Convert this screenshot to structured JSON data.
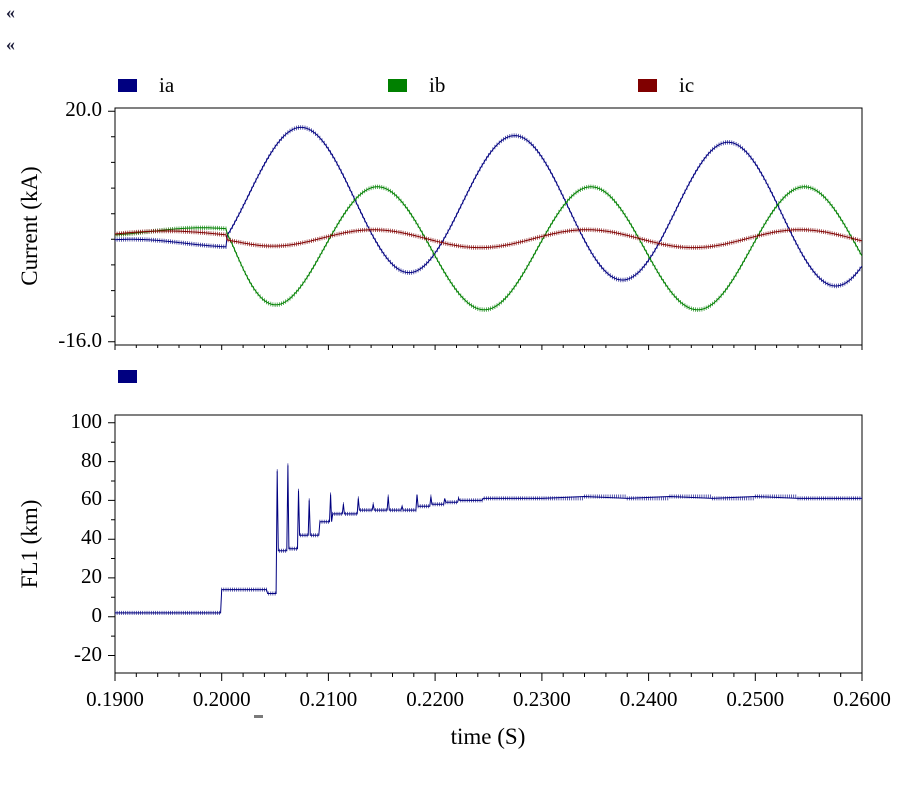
{
  "decorations": {
    "markers": [
      "«",
      "«"
    ]
  },
  "chart_data": [
    {
      "type": "line",
      "title": "",
      "xlabel": "time (S)",
      "ylabel": "Current (kA)",
      "xlim": [
        0.19,
        0.26
      ],
      "ylim": [
        -16.0,
        20.0
      ],
      "x_ticks": [
        0.19,
        0.2,
        0.21,
        0.22,
        0.23,
        0.24,
        0.25,
        0.26
      ],
      "x_tick_labels": [
        "0.1900",
        "0.2000",
        "0.2100",
        "0.2200",
        "0.2300",
        "0.2400",
        "0.2500",
        "0.2600"
      ],
      "x_minor_step": 0.002,
      "y_ticks": [
        20,
        -16
      ],
      "y_tick_labels": [
        "20.0",
        "-16.0"
      ],
      "y_minor_step": 4,
      "grid": false,
      "legend_position": "top",
      "series": [
        {
          "name": "ia",
          "color": "#000080",
          "waveform": {
            "freq_hz": 50,
            "segments": [
              {
                "from": 0.19,
                "to": 0.2005,
                "freq": 50,
                "amp": 0.6,
                "t_peak": 0.1915,
                "dc": -0.6
              },
              {
                "from": 0.2005,
                "to": 0.26,
                "freq": 50,
                "amp": 11.0,
                "t_peak": 0.2075,
                "dc": 0,
                "dc_exp": 7.0,
                "dc_tau": 0.09
              }
            ]
          },
          "key_points": [
            [
              0.2075,
              17.9
            ],
            [
              0.2157,
              -5.0
            ],
            [
              0.2275,
              16.3
            ],
            [
              0.2357,
              -6.2
            ],
            [
              0.2475,
              15.2
            ],
            [
              0.2557,
              -7.0
            ]
          ]
        },
        {
          "name": "ib",
          "color": "#008000",
          "waveform": {
            "freq_hz": 50,
            "segments": [
              {
                "from": 0.19,
                "to": 0.2005,
                "freq": 50,
                "amp": 0.6,
                "t_peak": 0.1982,
                "dc": 1.2
              },
              {
                "from": 0.2005,
                "to": 0.26,
                "freq": 50,
                "amp": 9.6,
                "amp_exp": -8.6,
                "amp_tau": 0.0015,
                "t_peak": 0.2146,
                "dc": -1.4,
                "dc_exp": 2.6,
                "dc_tau": 0.002
              }
            ]
          },
          "key_points": [
            [
              0.2046,
              -10.1
            ],
            [
              0.2146,
              8.1
            ],
            [
              0.2246,
              -11.0
            ],
            [
              0.2346,
              8.2
            ],
            [
              0.2446,
              -11.0
            ],
            [
              0.2546,
              8.2
            ]
          ]
        },
        {
          "name": "ic",
          "color": "#800000",
          "waveform": {
            "freq_hz": 50,
            "segments": [
              {
                "from": 0.19,
                "to": 0.2005,
                "freq": 50,
                "amp": 0.5,
                "t_peak": 0.1948,
                "dc": 0.8
              },
              {
                "from": 0.2005,
                "to": 0.26,
                "freq": 50,
                "amp": 1.4,
                "amp_exp": -0.9,
                "amp_tau": 0.003,
                "t_peak": 0.2142,
                "dc": 0.1
              }
            ]
          },
          "key_points": [
            [
              0.2042,
              -1.3
            ],
            [
              0.2142,
              1.5
            ],
            [
              0.2242,
              -1.3
            ],
            [
              0.2342,
              1.5
            ],
            [
              0.2442,
              -1.3
            ],
            [
              0.2542,
              1.5
            ]
          ]
        }
      ]
    },
    {
      "type": "line",
      "title": "",
      "xlabel": "time (S)",
      "ylabel": "FL1 (km)",
      "xlim": [
        0.19,
        0.26
      ],
      "ylim": [
        -20,
        100
      ],
      "x_ticks": [
        0.19,
        0.2,
        0.21,
        0.22,
        0.23,
        0.24,
        0.25,
        0.26
      ],
      "x_tick_labels": [
        "0.1900",
        "0.2000",
        "0.2100",
        "0.2200",
        "0.2300",
        "0.2400",
        "0.2500",
        "0.2600"
      ],
      "x_minor_step": 0.002,
      "y_ticks": [
        100,
        80,
        60,
        40,
        20,
        0,
        -20
      ],
      "y_tick_labels": [
        "100",
        "80",
        "60",
        "40",
        "20",
        "0",
        "-20"
      ],
      "y_minor_step": 10,
      "grid": false,
      "series": [
        {
          "name": "FL1",
          "legend_label": "",
          "color": "#000080",
          "points": [
            [
              0.19,
              2
            ],
            [
              0.1999,
              2
            ],
            [
              0.2,
              14
            ],
            [
              0.2042,
              14
            ],
            [
              0.2043,
              12
            ],
            [
              0.2051,
              12
            ],
            [
              0.2052,
              75
            ],
            [
              0.2053,
              34
            ],
            [
              0.2061,
              34
            ],
            [
              0.2062,
              78
            ],
            [
              0.2063,
              35
            ],
            [
              0.2071,
              35
            ],
            [
              0.2072,
              65
            ],
            [
              0.2073,
              42
            ],
            [
              0.2081,
              42
            ],
            [
              0.2082,
              60
            ],
            [
              0.2083,
              42
            ],
            [
              0.2091,
              42
            ],
            [
              0.2092,
              49
            ],
            [
              0.2101,
              49
            ],
            [
              0.2102,
              63
            ],
            [
              0.2103,
              49
            ],
            [
              0.2104,
              53
            ],
            [
              0.2113,
              53
            ],
            [
              0.2114,
              58
            ],
            [
              0.2115,
              53
            ],
            [
              0.2127,
              53
            ],
            [
              0.2128,
              61
            ],
            [
              0.2129,
              55
            ],
            [
              0.2141,
              55
            ],
            [
              0.2142,
              58
            ],
            [
              0.2143,
              55
            ],
            [
              0.2155,
              55
            ],
            [
              0.2156,
              62
            ],
            [
              0.2157,
              55
            ],
            [
              0.2168,
              55
            ],
            [
              0.2169,
              57
            ],
            [
              0.217,
              55
            ],
            [
              0.2182,
              55
            ],
            [
              0.2183,
              63
            ],
            [
              0.2184,
              57
            ],
            [
              0.2195,
              57
            ],
            [
              0.2196,
              62
            ],
            [
              0.2197,
              58
            ],
            [
              0.2208,
              58
            ],
            [
              0.2209,
              61
            ],
            [
              0.221,
              59
            ],
            [
              0.2221,
              59
            ],
            [
              0.2222,
              61
            ],
            [
              0.2223,
              60
            ],
            [
              0.2244,
              60
            ],
            [
              0.2245,
              61
            ],
            [
              0.227,
              61
            ],
            [
              0.23,
              61
            ],
            [
              0.234,
              62
            ],
            [
              0.238,
              61
            ],
            [
              0.242,
              62
            ],
            [
              0.246,
              61
            ],
            [
              0.25,
              62
            ],
            [
              0.254,
              61
            ],
            [
              0.26,
              61
            ]
          ]
        }
      ]
    }
  ]
}
